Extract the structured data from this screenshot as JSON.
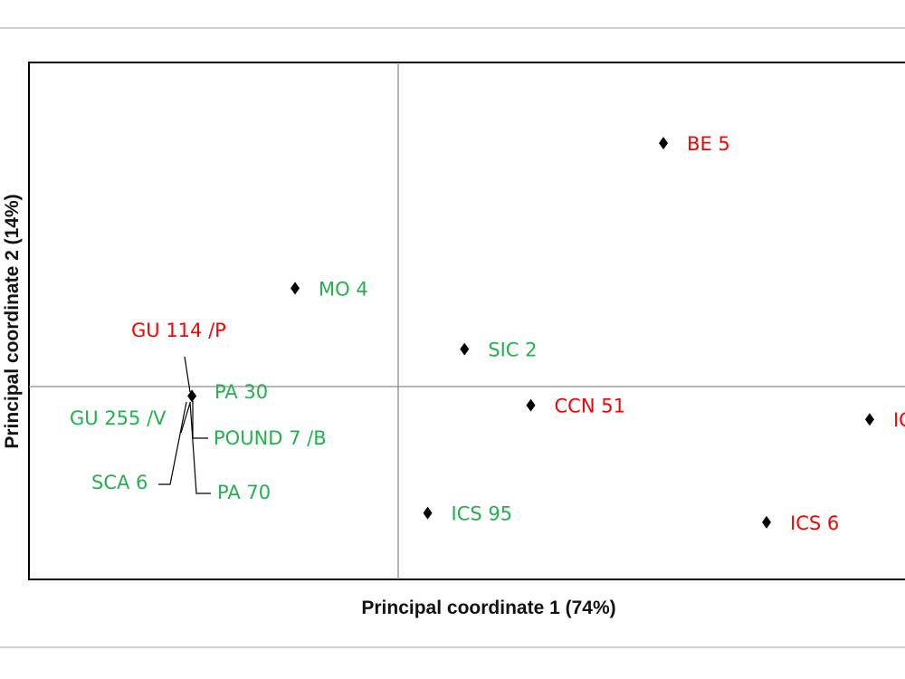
{
  "chart_data": {
    "type": "scatter",
    "xlabel": "Principal coordinate 1 (74%)",
    "ylabel": "Principal coordinate 2 (14%)",
    "grid": false,
    "zero_lines": true,
    "colors": {
      "red_group": "#ff0000",
      "green_group": "#22b14c",
      "marker": "#000000"
    },
    "points": [
      {
        "label": "BE 5",
        "x": 0.72,
        "y": 0.52,
        "group": "red"
      },
      {
        "label": "MO 4",
        "x": -0.28,
        "y": 0.21,
        "group": "green"
      },
      {
        "label": "SIC 2",
        "x": 0.18,
        "y": 0.08,
        "group": "green"
      },
      {
        "label": "GU 114 /P",
        "x": -0.56,
        "y": -0.02,
        "group": "red"
      },
      {
        "label": "PA 30",
        "x": -0.56,
        "y": -0.02,
        "group": "green"
      },
      {
        "label": "GU 255 /V",
        "x": -0.56,
        "y": -0.02,
        "group": "green"
      },
      {
        "label": "POUND 7 /B",
        "x": -0.56,
        "y": -0.02,
        "group": "green"
      },
      {
        "label": "SCA 6",
        "x": -0.56,
        "y": -0.02,
        "group": "green"
      },
      {
        "label": "PA 70",
        "x": -0.56,
        "y": -0.02,
        "group": "green"
      },
      {
        "label": "CCN 51",
        "x": 0.36,
        "y": -0.04,
        "group": "red"
      },
      {
        "label": "IC",
        "x": 1.28,
        "y": -0.07,
        "group": "red"
      },
      {
        "label": "ICS 95",
        "x": 0.08,
        "y": -0.27,
        "group": "green"
      },
      {
        "label": "ICS 6",
        "x": 1.0,
        "y": -0.29,
        "group": "red"
      }
    ]
  }
}
